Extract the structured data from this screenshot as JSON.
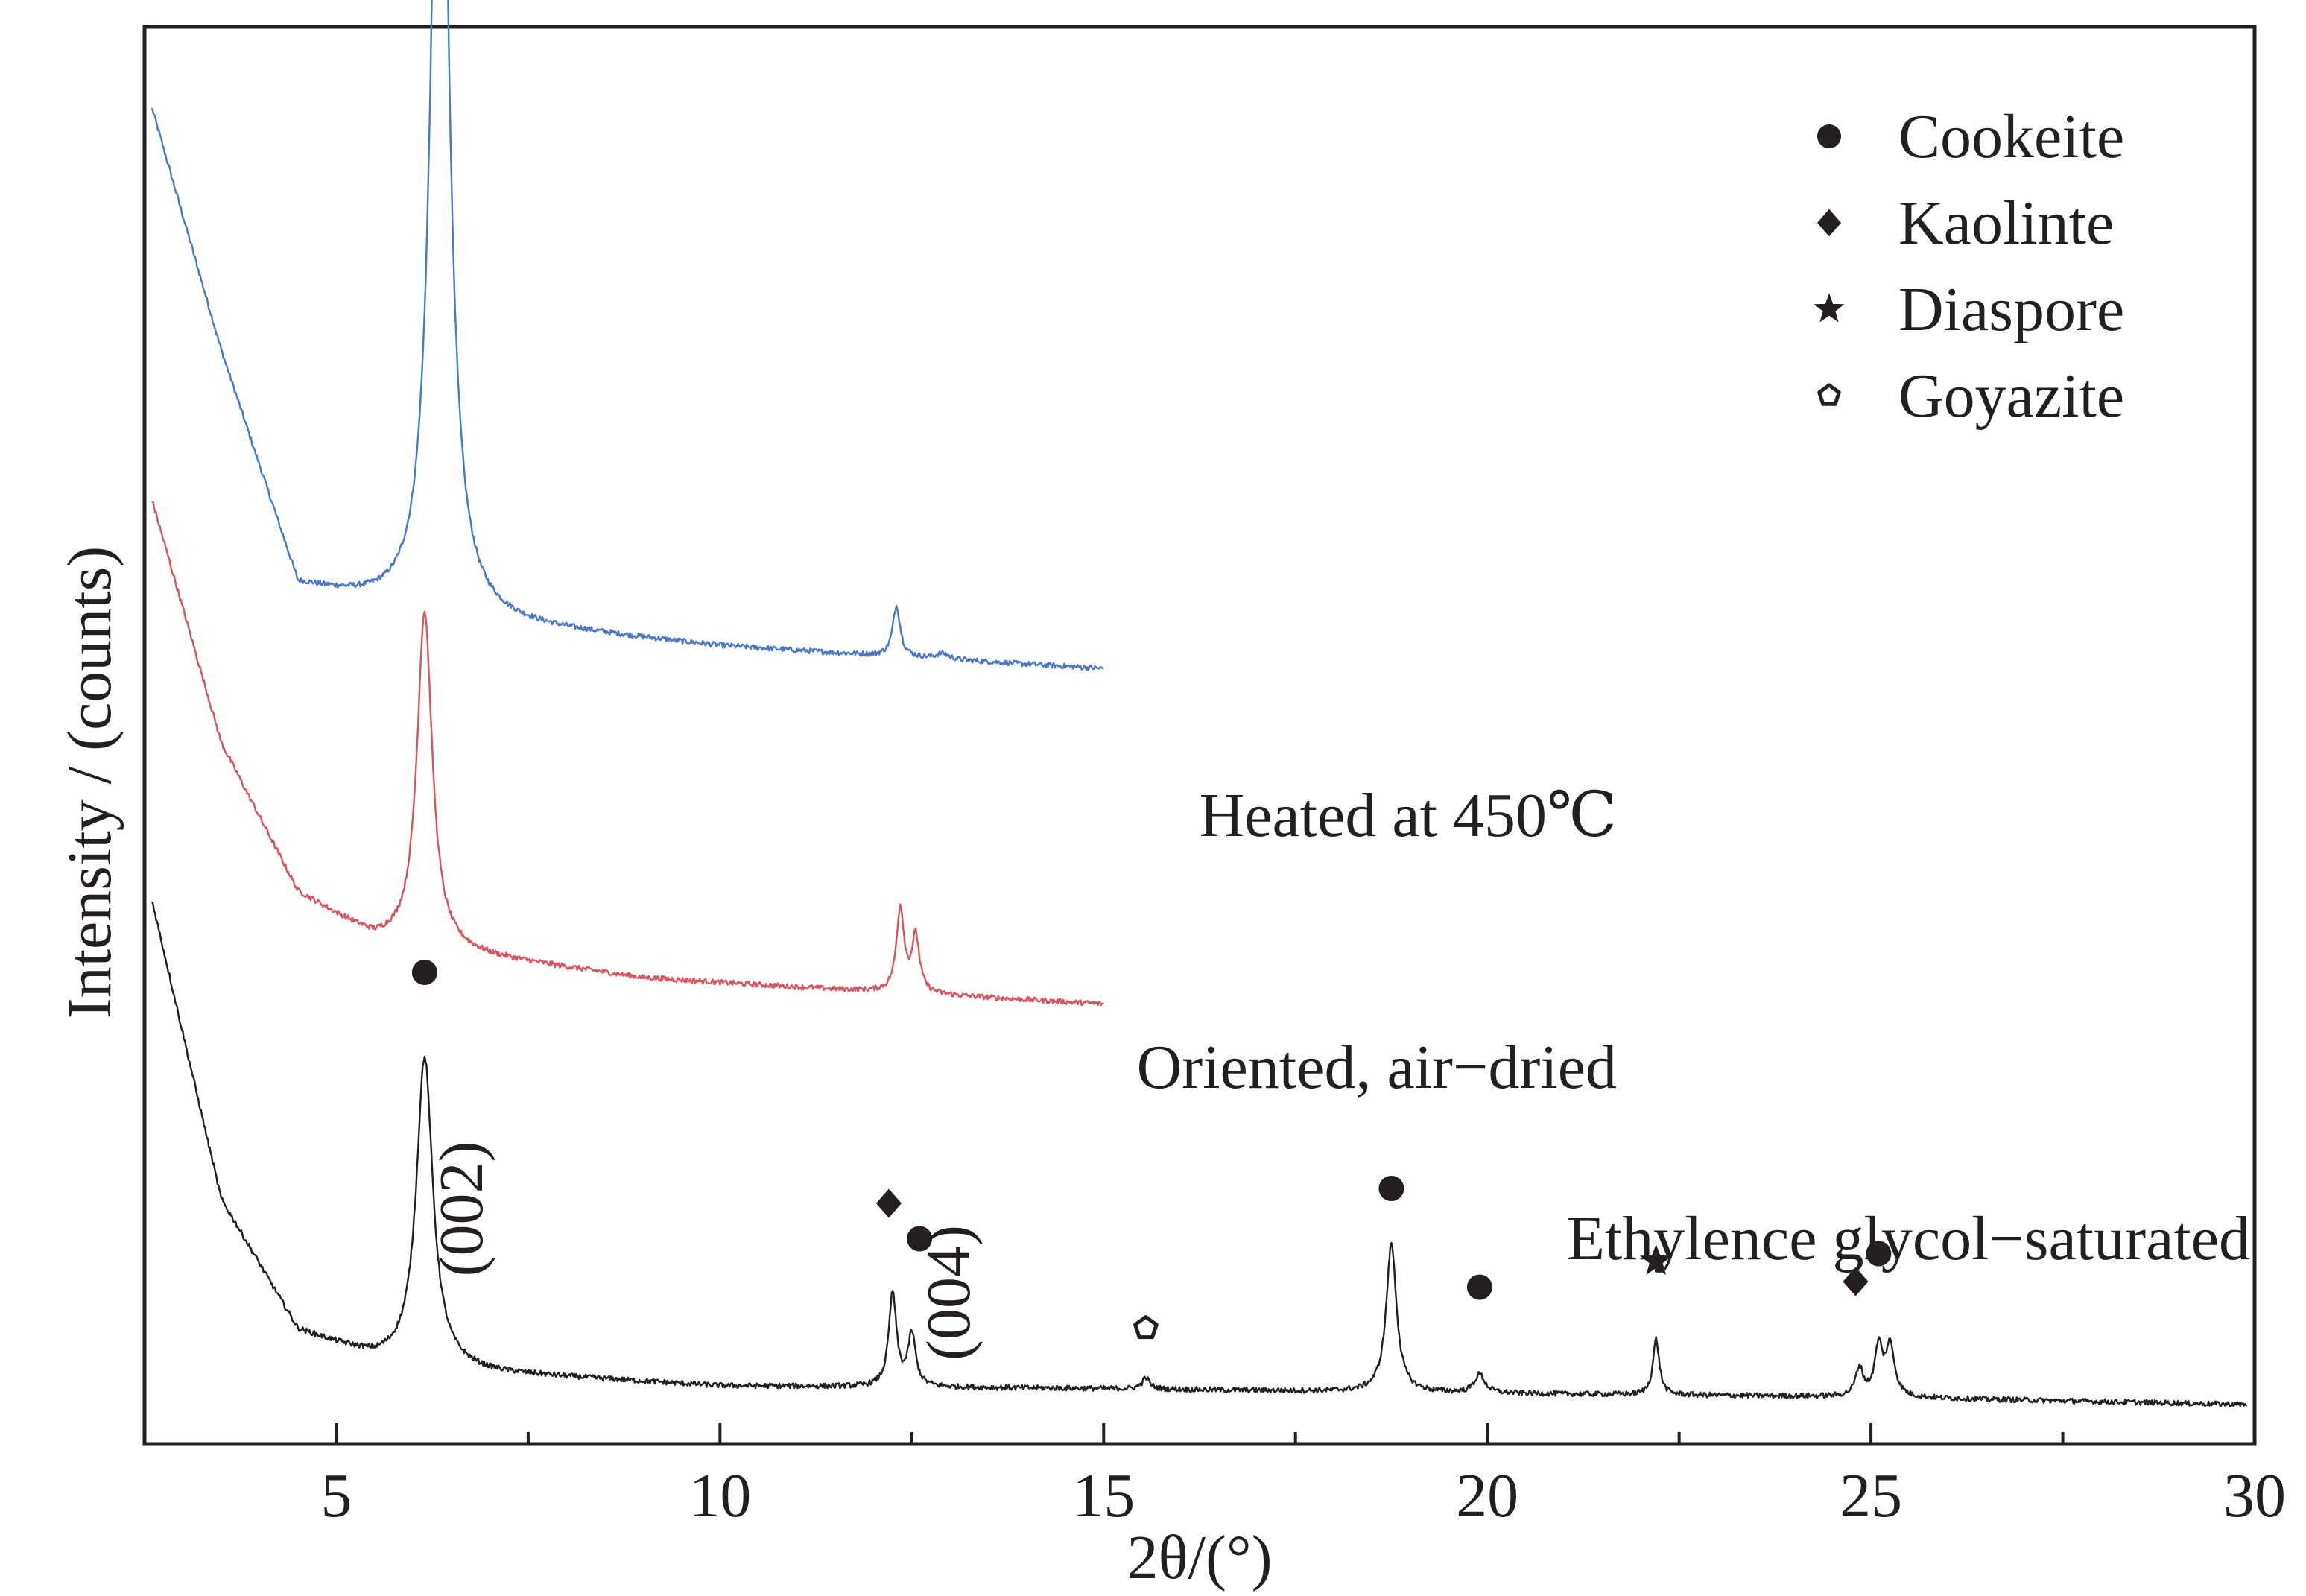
{
  "chart_data": {
    "type": "line",
    "xlabel": "2θ/(°)",
    "ylabel": "Intensity / (counts)",
    "xlim": [
      2.5,
      30
    ],
    "x_ticks": [
      5,
      10,
      15,
      20,
      25,
      30
    ],
    "x_tick_labels": [
      "5",
      "10",
      "15",
      "20",
      "25",
      "30"
    ],
    "y_ticks_shown": false,
    "grid": false,
    "legend_position": "top-right",
    "legend": [
      {
        "symbol": "circle",
        "label": "Cookeite"
      },
      {
        "symbol": "diamond",
        "label": "Kaolinte"
      },
      {
        "symbol": "star",
        "label": "Diaspore"
      },
      {
        "symbol": "pentagon",
        "label": "Goyazite"
      }
    ],
    "colors": {
      "heated": "#4a78c8",
      "air_dried": "#d9545f",
      "glycol": "#231f20",
      "axis": "#231f20"
    },
    "series": [
      {
        "name": "Heated  at  450℃",
        "color_key": "heated",
        "x_range": [
          2.6,
          15
        ],
        "offset": 0.395,
        "baseline": [
          [
            2.6,
            0.3
          ],
          [
            3.5,
            0.17
          ],
          [
            4.5,
            0.045
          ],
          [
            6.0,
            0.03
          ],
          [
            7.5,
            0.022
          ],
          [
            10,
            0.012
          ],
          [
            12,
            0.007
          ],
          [
            15,
            0.0
          ]
        ],
        "peaks": [
          [
            6.35,
            0.55,
            0.13
          ],
          [
            12.3,
            0.027,
            0.06
          ],
          [
            12.9,
            0.003,
            0.1
          ]
        ]
      },
      {
        "name": "Oriented, air−dried",
        "color_key": "air_dried",
        "x_range": [
          2.6,
          15
        ],
        "offset": 0.215,
        "baseline": [
          [
            2.6,
            0.27
          ],
          [
            3.5,
            0.14
          ],
          [
            4.5,
            0.06
          ],
          [
            5.5,
            0.035
          ],
          [
            7.0,
            0.025
          ],
          [
            9.0,
            0.014
          ],
          [
            11,
            0.009
          ],
          [
            15,
            0.0
          ]
        ],
        "peaks": [
          [
            6.15,
            0.18,
            0.12
          ],
          [
            12.35,
            0.045,
            0.06
          ],
          [
            12.55,
            0.03,
            0.06
          ]
        ]
      },
      {
        "name": "Ethylence glycol−saturated",
        "color_key": "glycol",
        "x_range": [
          2.6,
          29.9
        ],
        "offset": 0.0,
        "baseline": [
          [
            2.6,
            0.27
          ],
          [
            3.5,
            0.11
          ],
          [
            4.5,
            0.04
          ],
          [
            5.5,
            0.025
          ],
          [
            7.0,
            0.017
          ],
          [
            10,
            0.01
          ],
          [
            15,
            0.0085
          ],
          [
            20,
            0.006
          ],
          [
            25,
            0.004
          ],
          [
            29.9,
            0.0
          ]
        ],
        "peaks": [
          [
            6.15,
            0.165,
            0.13
          ],
          [
            12.25,
            0.05,
            0.06
          ],
          [
            12.5,
            0.028,
            0.06
          ],
          [
            15.55,
            0.006,
            0.06
          ],
          [
            18.75,
            0.08,
            0.08
          ],
          [
            19.9,
            0.01,
            0.08
          ],
          [
            22.2,
            0.03,
            0.05
          ],
          [
            24.85,
            0.015,
            0.06
          ],
          [
            25.1,
            0.026,
            0.06
          ],
          [
            25.25,
            0.027,
            0.07
          ]
        ]
      }
    ],
    "annotations": [
      {
        "text": "(002)",
        "x": 6.9,
        "y": 0.105,
        "rotate": -90
      },
      {
        "text": "(004)",
        "x": 13.25,
        "y": 0.06,
        "rotate": -90
      }
    ],
    "markers": [
      {
        "symbol": "circle",
        "x": 6.15,
        "y": 0.232
      },
      {
        "symbol": "diamond",
        "x": 12.2,
        "y": 0.108
      },
      {
        "symbol": "circle",
        "x": 12.6,
        "y": 0.089
      },
      {
        "symbol": "pentagon",
        "x": 15.55,
        "y": 0.041
      },
      {
        "symbol": "circle",
        "x": 18.75,
        "y": 0.116
      },
      {
        "symbol": "circle",
        "x": 19.9,
        "y": 0.063
      },
      {
        "symbol": "star",
        "x": 22.2,
        "y": 0.077
      },
      {
        "symbol": "diamond",
        "x": 24.8,
        "y": 0.066
      },
      {
        "symbol": "circle",
        "x": 25.1,
        "y": 0.081
      }
    ]
  }
}
